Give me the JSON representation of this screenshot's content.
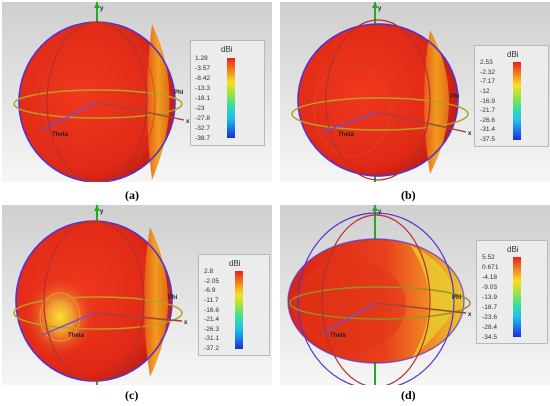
{
  "colors": {
    "background_top": "#d8d8d8",
    "background_bottom": "#f4f4f4",
    "pattern_main": "#e8301c",
    "pattern_rim": "#f0a020"
  },
  "axes": {
    "x": "x",
    "y": "y",
    "phi": "Phi",
    "theta": "Theta"
  },
  "panels": [
    {
      "caption": "(a)",
      "unit": "dBi",
      "ticks": [
        "1.28",
        "-3.57",
        "-8.42",
        "-13.3",
        "-18.1",
        "-23",
        "-27.8",
        "-32.7",
        "-38.7"
      ]
    },
    {
      "caption": "(b)",
      "unit": "dBi",
      "ticks": [
        "2.53",
        "-2.32",
        "-7.17",
        "-12",
        "-16.9",
        "-21.7",
        "-26.6",
        "-31.4",
        "-37.5"
      ]
    },
    {
      "caption": "(c)",
      "unit": "dBi",
      "ticks": [
        "2.8",
        "-2.05",
        "-6.9",
        "-11.7",
        "-16.6",
        "-21.4",
        "-26.3",
        "-31.1",
        "-37.2"
      ]
    },
    {
      "caption": "(d)",
      "unit": "dBi",
      "ticks": [
        "5.52",
        "0.671",
        "-4.18",
        "-9.03",
        "-13.9",
        "-18.7",
        "-23.6",
        "-28.4",
        "-34.5"
      ]
    }
  ]
}
